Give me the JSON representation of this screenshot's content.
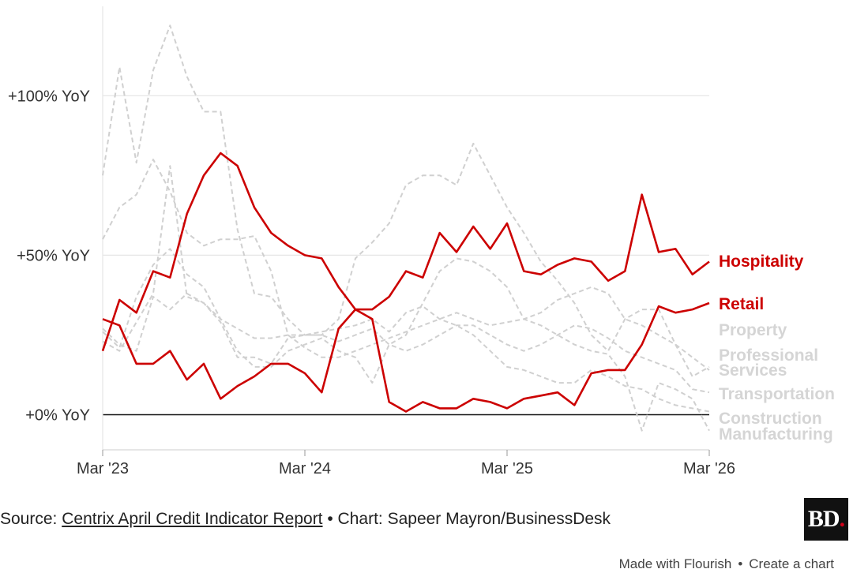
{
  "chart_data": {
    "type": "line",
    "title": "",
    "xlabel": "",
    "ylabel": "",
    "x": [
      "2023-03",
      "2023-04",
      "2023-05",
      "2023-06",
      "2023-07",
      "2023-08",
      "2023-09",
      "2023-10",
      "2023-11",
      "2023-12",
      "2024-01",
      "2024-02",
      "2024-03",
      "2024-04",
      "2024-05",
      "2024-06",
      "2024-07",
      "2024-08",
      "2024-09",
      "2024-10",
      "2024-11",
      "2024-12",
      "2025-01",
      "2025-02",
      "2025-03",
      "2025-04",
      "2025-05",
      "2025-06",
      "2025-07",
      "2025-08",
      "2025-09",
      "2025-10",
      "2025-11",
      "2025-12",
      "2026-01",
      "2026-02",
      "2026-03"
    ],
    "x_ticks": [
      "Mar '23",
      "Mar '24",
      "Mar '25",
      "Mar '26"
    ],
    "y_ticks": [
      {
        "value": 0,
        "label": "+0% YoY"
      },
      {
        "value": 50,
        "label": "+50% YoY"
      },
      {
        "value": 100,
        "label": "+100% YoY"
      }
    ],
    "ylim": [
      -11,
      130
    ],
    "grid": true,
    "zero_line": true,
    "series": [
      {
        "name": "Property",
        "color": "#d0d0d0",
        "dashed": true,
        "highlight": false,
        "values": [
          75,
          109,
          79,
          108,
          122,
          106,
          95,
          95,
          58,
          38,
          37,
          30,
          25,
          25,
          30,
          49,
          54,
          60,
          72,
          75,
          75,
          72,
          85,
          75,
          65,
          57,
          48,
          42,
          35,
          25,
          20,
          30,
          33,
          33,
          22,
          12,
          15
        ]
      },
      {
        "name": "Professional Services",
        "color": "#d0d0d0",
        "dashed": true,
        "highlight": false,
        "values": [
          55,
          65,
          69,
          80,
          70,
          57,
          53,
          55,
          55,
          56,
          45,
          25,
          21,
          18,
          18,
          20,
          22,
          24,
          26,
          28,
          30,
          32,
          30,
          28,
          29,
          30,
          32,
          36,
          38,
          40,
          38,
          30,
          28,
          25,
          22,
          18,
          14
        ]
      },
      {
        "name": "Transportation",
        "color": "#d0d0d0",
        "dashed": true,
        "highlight": false,
        "values": [
          26,
          21,
          37,
          47,
          52,
          44,
          40,
          30,
          27,
          24,
          24,
          25,
          25,
          25,
          23,
          25,
          27,
          22,
          20,
          22,
          25,
          28,
          28,
          25,
          22,
          20,
          22,
          25,
          28,
          27,
          24,
          20,
          18,
          16,
          14,
          8,
          7
        ]
      },
      {
        "name": "Construction",
        "color": "#d0d0d0",
        "dashed": true,
        "highlight": false,
        "values": [
          23,
          20,
          29,
          38,
          78,
          37,
          35,
          29,
          18,
          18,
          16,
          24,
          25,
          26,
          27,
          28,
          30,
          26,
          32,
          34,
          30,
          28,
          25,
          20,
          15,
          14,
          12,
          10,
          10,
          14,
          12,
          9,
          8,
          5,
          3,
          2,
          1
        ]
      },
      {
        "name": "Manufacturing",
        "color": "#d0d0d0",
        "dashed": true,
        "highlight": false,
        "values": [
          27,
          22,
          20,
          37,
          33,
          38,
          35,
          30,
          20,
          15,
          15,
          20,
          22,
          24,
          20,
          18,
          10,
          22,
          25,
          35,
          45,
          49,
          48,
          45,
          40,
          30,
          28,
          25,
          22,
          20,
          19,
          12,
          -5,
          10,
          8,
          5,
          -5
        ]
      },
      {
        "name": "Retail",
        "color": "#cc0000",
        "dashed": false,
        "highlight": true,
        "values": [
          20,
          36,
          32,
          45,
          43,
          63,
          75,
          82,
          78,
          65,
          57,
          53,
          50,
          49,
          40,
          33,
          33,
          37,
          45,
          43,
          57,
          51,
          59,
          52,
          60,
          45,
          44,
          47,
          49,
          48,
          42,
          45,
          69,
          51,
          52,
          44,
          48
        ]
      },
      {
        "name": "Hospitality",
        "color": "#cc0000",
        "dashed": false,
        "highlight": true,
        "values": [
          30,
          28,
          16,
          16,
          20,
          11,
          16,
          5,
          9,
          12,
          16,
          16,
          13,
          7,
          27,
          33,
          30,
          4,
          1,
          4,
          2,
          2,
          5,
          4,
          2,
          5,
          6,
          7,
          3,
          13,
          14,
          14,
          22,
          34,
          32,
          33,
          35
        ]
      }
    ],
    "legend_placement": "right, at line ends",
    "label_order": [
      "Hospitality",
      "Retail",
      "Property",
      "Professional Services",
      "Transportation",
      "Construction",
      "Manufacturing"
    ],
    "highlight_color": "#cc0000",
    "muted_label_color": "#d5d5d5"
  },
  "footer": {
    "source_prefix": "Source: ",
    "source_link": "Centrix April Credit Indicator Report",
    "chart_credit": " • Chart: Sapeer Mayron/BusinessDesk"
  },
  "logo": {
    "text": "BD",
    "dot": "."
  },
  "flourish": {
    "made_with": "Made with Flourish",
    "sep": "•",
    "create": "Create a chart"
  }
}
